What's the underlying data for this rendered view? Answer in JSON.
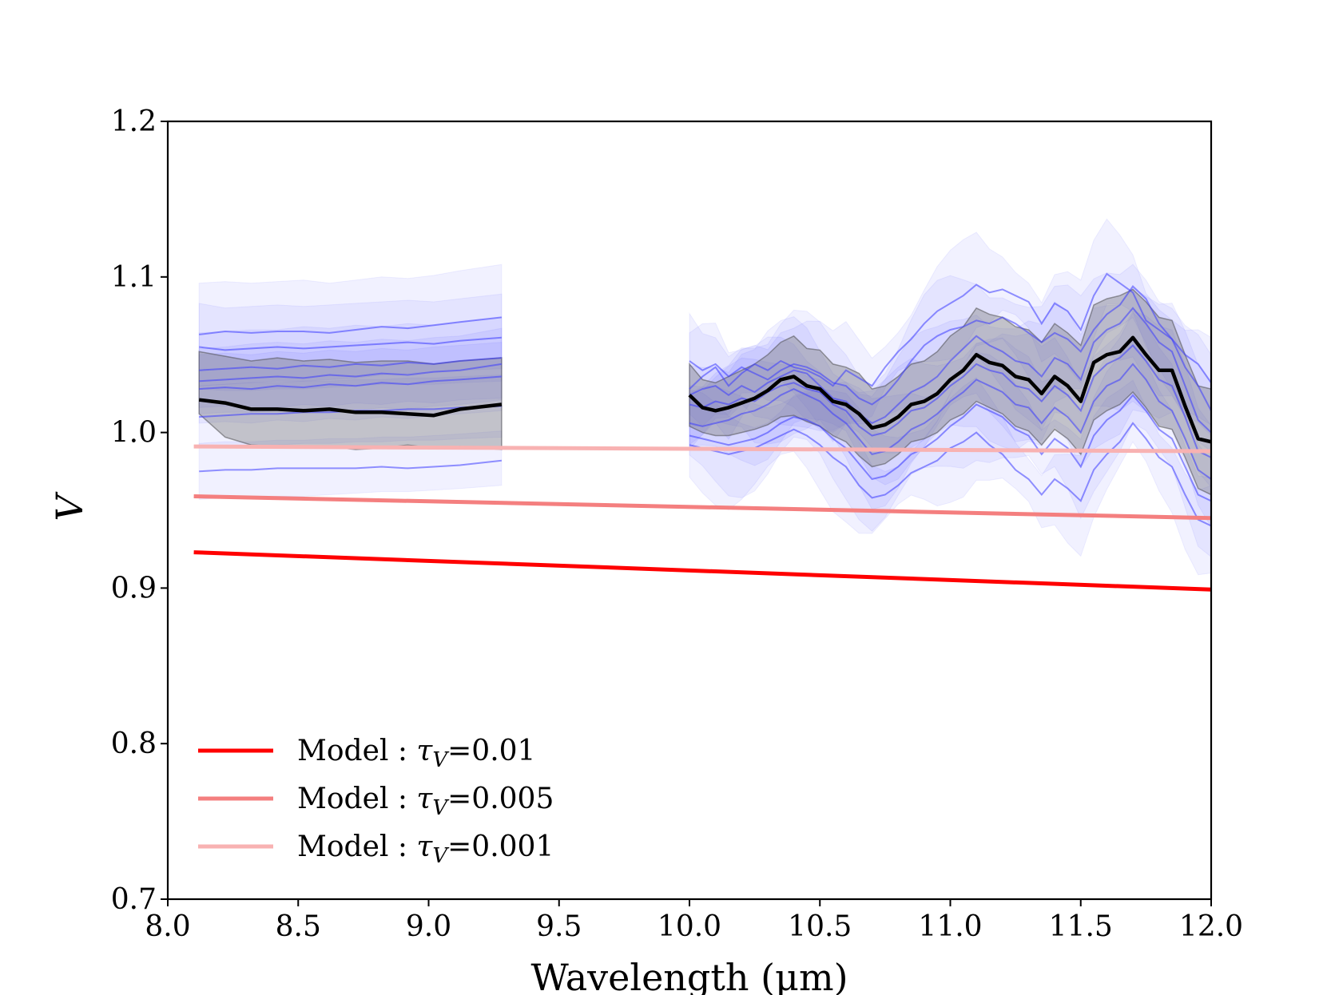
{
  "chart_data": {
    "type": "line",
    "xlabel": "Wavelength (μm)",
    "ylabel": "V",
    "xlim": [
      8.0,
      12.0
    ],
    "ylim": [
      0.7,
      1.2
    ],
    "xticks": [
      "8.0",
      "8.5",
      "9.0",
      "9.5",
      "10.0",
      "10.5",
      "11.0",
      "11.5",
      "12.0"
    ],
    "yticks": [
      "0.7",
      "0.8",
      "0.9",
      "1.0",
      "1.1",
      "1.2"
    ],
    "grid": false,
    "legend_position": "lower-left",
    "colors": {
      "mean": "#000000",
      "mean_band": "#808080",
      "obs": "#3b3bff",
      "model_0_01": "#ff0000",
      "model_0_005": "#f47f7f",
      "model_0_001": "#f8b2b2"
    },
    "models": [
      {
        "name": "Model : τV=0.01",
        "prefix": "Model : ",
        "tau": "τ",
        "sub": "V",
        "value": "=0.01",
        "x": [
          8.1,
          12.0
        ],
        "y": [
          0.923,
          0.899
        ],
        "color": "#ff0000",
        "width": 5
      },
      {
        "name": "Model : τV=0.005",
        "prefix": "Model : ",
        "tau": "τ",
        "sub": "V",
        "value": "=0.005",
        "x": [
          8.1,
          12.0
        ],
        "y": [
          0.959,
          0.945
        ],
        "color": "#f47f7f",
        "width": 5
      },
      {
        "name": "Model : τV=0.001",
        "prefix": "Model : ",
        "tau": "τ",
        "sub": "V",
        "value": "=0.001",
        "x": [
          8.1,
          12.0
        ],
        "y": [
          0.991,
          0.988
        ],
        "color": "#f8b2b2",
        "width": 5
      }
    ],
    "segments": [
      {
        "x": [
          8.12,
          8.22,
          8.32,
          8.42,
          8.52,
          8.62,
          8.72,
          8.82,
          8.92,
          9.02,
          9.12,
          9.28
        ],
        "mean": [
          1.021,
          1.019,
          1.015,
          1.015,
          1.014,
          1.015,
          1.013,
          1.013,
          1.012,
          1.011,
          1.015,
          1.018
        ],
        "mean_band": {
          "low": [
            1.012,
            0.997,
            0.992,
            0.991,
            0.99,
            0.991,
            0.989,
            0.99,
            0.992,
            0.99,
            0.991,
            0.989
          ],
          "high": [
            1.052,
            1.049,
            1.046,
            1.048,
            1.046,
            1.047,
            1.045,
            1.046,
            1.046,
            1.044,
            1.046,
            1.048
          ]
        },
        "obs": [
          {
            "y": [
              1.063,
              1.065,
              1.064,
              1.065,
              1.065,
              1.064,
              1.066,
              1.068,
              1.067,
              1.069,
              1.071,
              1.074
            ],
            "low": [
              1.03,
              1.031,
              1.032,
              1.033,
              1.033,
              1.034,
              1.035,
              1.037,
              1.038,
              1.039,
              1.04,
              1.041
            ],
            "high": [
              1.096,
              1.097,
              1.096,
              1.097,
              1.098,
              1.096,
              1.098,
              1.1,
              1.099,
              1.101,
              1.104,
              1.108
            ]
          },
          {
            "y": [
              1.055,
              1.053,
              1.054,
              1.055,
              1.054,
              1.055,
              1.056,
              1.057,
              1.058,
              1.057,
              1.059,
              1.061
            ],
            "low": [
              1.028,
              1.027,
              1.027,
              1.028,
              1.028,
              1.029,
              1.03,
              1.031,
              1.031,
              1.031,
              1.032,
              1.033
            ],
            "high": [
              1.083,
              1.08,
              1.081,
              1.082,
              1.081,
              1.082,
              1.083,
              1.084,
              1.085,
              1.084,
              1.086,
              1.089
            ]
          },
          {
            "y": [
              1.04,
              1.041,
              1.042,
              1.041,
              1.043,
              1.042,
              1.044,
              1.043,
              1.045,
              1.044,
              1.046,
              1.048
            ],
            "low": [
              1.016,
              1.017,
              1.017,
              1.016,
              1.018,
              1.017,
              1.019,
              1.018,
              1.02,
              1.019,
              1.021,
              1.022
            ],
            "high": [
              1.064,
              1.065,
              1.066,
              1.066,
              1.068,
              1.067,
              1.069,
              1.068,
              1.07,
              1.069,
              1.071,
              1.074
            ]
          },
          {
            "y": [
              1.033,
              1.034,
              1.035,
              1.036,
              1.035,
              1.037,
              1.036,
              1.038,
              1.037,
              1.039,
              1.04,
              1.044
            ],
            "low": [
              1.012,
              1.013,
              1.013,
              1.014,
              1.013,
              1.015,
              1.014,
              1.016,
              1.015,
              1.017,
              1.018,
              1.021
            ],
            "high": [
              1.054,
              1.055,
              1.057,
              1.058,
              1.057,
              1.059,
              1.058,
              1.06,
              1.059,
              1.061,
              1.062,
              1.067
            ]
          },
          {
            "y": [
              1.028,
              1.029,
              1.028,
              1.03,
              1.029,
              1.031,
              1.03,
              1.032,
              1.031,
              1.033,
              1.034,
              1.036
            ],
            "low": [
              1.006,
              1.007,
              1.006,
              1.008,
              1.007,
              1.009,
              1.008,
              1.01,
              1.009,
              1.011,
              1.012,
              1.014
            ],
            "high": [
              1.05,
              1.051,
              1.05,
              1.052,
              1.051,
              1.053,
              1.052,
              1.054,
              1.053,
              1.055,
              1.056,
              1.058
            ]
          },
          {
            "y": [
              1.01,
              1.011,
              1.012,
              1.012,
              1.013,
              1.013,
              1.014,
              1.014,
              1.015,
              1.015,
              1.016,
              1.017
            ],
            "low": [
              0.99,
              0.991,
              0.992,
              0.992,
              0.993,
              0.993,
              0.994,
              0.994,
              0.995,
              0.995,
              0.996,
              0.997
            ],
            "high": [
              1.03,
              1.031,
              1.032,
              1.032,
              1.033,
              1.033,
              1.034,
              1.034,
              1.035,
              1.035,
              1.036,
              1.037
            ]
          },
          {
            "y": [
              0.975,
              0.976,
              0.976,
              0.977,
              0.977,
              0.977,
              0.977,
              0.978,
              0.977,
              0.978,
              0.979,
              0.982
            ],
            "low": [
              0.957,
              0.958,
              0.958,
              0.959,
              0.959,
              0.96,
              0.961,
              0.962,
              0.962,
              0.963,
              0.964,
              0.966
            ],
            "high": [
              0.993,
              0.994,
              0.994,
              0.995,
              0.995,
              0.996,
              0.996,
              0.997,
              0.997,
              0.998,
              0.999,
              1.001
            ]
          }
        ]
      },
      {
        "x": [
          10.0,
          10.05,
          10.1,
          10.15,
          10.2,
          10.25,
          10.3,
          10.35,
          10.4,
          10.45,
          10.5,
          10.55,
          10.6,
          10.65,
          10.7,
          10.75,
          10.8,
          10.85,
          10.9,
          10.95,
          11.0,
          11.05,
          11.1,
          11.15,
          11.2,
          11.25,
          11.3,
          11.35,
          11.4,
          11.45,
          11.5,
          11.55,
          11.6,
          11.65,
          11.7,
          11.75,
          11.8,
          11.85,
          11.9,
          11.95,
          12.0
        ],
        "mean": [
          1.024,
          1.016,
          1.014,
          1.016,
          1.019,
          1.022,
          1.027,
          1.034,
          1.036,
          1.03,
          1.028,
          1.02,
          1.018,
          1.012,
          1.003,
          1.005,
          1.01,
          1.018,
          1.02,
          1.025,
          1.034,
          1.04,
          1.05,
          1.045,
          1.043,
          1.036,
          1.034,
          1.025,
          1.036,
          1.03,
          1.02,
          1.045,
          1.05,
          1.052,
          1.061,
          1.05,
          1.04,
          1.04,
          1.017,
          0.996,
          0.994
        ],
        "mean_band": {
          "low": [
            1.004,
            1.0,
            0.998,
            0.998,
            1.0,
            1.002,
            1.005,
            1.01,
            1.011,
            1.007,
            1.004,
            0.998,
            0.994,
            0.985,
            0.978,
            0.98,
            0.986,
            0.994,
            0.996,
            1.0,
            1.008,
            1.012,
            1.02,
            1.016,
            1.012,
            1.004,
            1.001,
            0.992,
            1.002,
            0.996,
            0.986,
            1.008,
            1.014,
            1.018,
            1.026,
            1.016,
            1.004,
            1.002,
            0.984,
            0.964,
            0.96
          ],
          "high": [
            1.044,
            1.034,
            1.032,
            1.036,
            1.04,
            1.044,
            1.05,
            1.058,
            1.062,
            1.054,
            1.053,
            1.044,
            1.042,
            1.038,
            1.028,
            1.03,
            1.036,
            1.044,
            1.046,
            1.052,
            1.062,
            1.068,
            1.08,
            1.076,
            1.074,
            1.068,
            1.066,
            1.058,
            1.07,
            1.064,
            1.056,
            1.082,
            1.086,
            1.088,
            1.092,
            1.084,
            1.074,
            1.072,
            1.05,
            1.03,
            1.028
          ]
        },
        "obs": [
          {
            "y": [
              1.028,
              1.036,
              1.042,
              1.03,
              1.038,
              1.044,
              1.04,
              1.046,
              1.042,
              1.04,
              1.036,
              1.03,
              1.04,
              1.035,
              1.03,
              1.042,
              1.052,
              1.06,
              1.07,
              1.078,
              1.083,
              1.088,
              1.095,
              1.09,
              1.092,
              1.088,
              1.084,
              1.07,
              1.083,
              1.078,
              1.066,
              1.088,
              1.102,
              1.096,
              1.09,
              1.072,
              1.066,
              1.06,
              1.05,
              1.044,
              1.032
            ]
          },
          {
            "y": [
              1.046,
              1.04,
              1.044,
              1.036,
              1.042,
              1.038,
              1.034,
              1.04,
              1.044,
              1.042,
              1.038,
              1.032,
              1.03,
              1.022,
              1.018,
              1.024,
              1.034,
              1.046,
              1.056,
              1.062,
              1.066,
              1.068,
              1.072,
              1.07,
              1.074,
              1.07,
              1.064,
              1.058,
              1.064,
              1.06,
              1.052,
              1.066,
              1.076,
              1.082,
              1.094,
              1.086,
              1.07,
              1.06,
              1.042,
              1.03,
              1.014
            ]
          },
          {
            "y": [
              1.024,
              1.028,
              1.03,
              1.024,
              1.03,
              1.026,
              1.032,
              1.036,
              1.04,
              1.038,
              1.03,
              1.022,
              1.02,
              1.012,
              1.006,
              1.01,
              1.018,
              1.026,
              1.03,
              1.036,
              1.046,
              1.054,
              1.062,
              1.056,
              1.052,
              1.046,
              1.044,
              1.036,
              1.048,
              1.044,
              1.034,
              1.058,
              1.066,
              1.07,
              1.08,
              1.07,
              1.058,
              1.052,
              1.03,
              1.008,
              1.0
            ]
          },
          {
            "y": [
              1.018,
              1.016,
              1.02,
              1.018,
              1.022,
              1.02,
              1.026,
              1.03,
              1.032,
              1.028,
              1.026,
              1.018,
              1.014,
              1.004,
              0.998,
              1.0,
              1.006,
              1.014,
              1.016,
              1.022,
              1.03,
              1.036,
              1.044,
              1.04,
              1.038,
              1.03,
              1.028,
              1.02,
              1.03,
              1.024,
              1.014,
              1.036,
              1.044,
              1.048,
              1.056,
              1.046,
              1.034,
              1.03,
              1.01,
              0.988,
              0.984
            ]
          },
          {
            "y": [
              1.006,
              1.004,
              1.006,
              1.008,
              1.012,
              1.014,
              1.018,
              1.024,
              1.028,
              1.024,
              1.02,
              1.012,
              1.006,
              0.996,
              0.986,
              0.988,
              0.994,
              1.002,
              1.006,
              1.012,
              1.02,
              1.026,
              1.034,
              1.03,
              1.026,
              1.018,
              1.016,
              1.006,
              1.016,
              1.01,
              1.0,
              1.02,
              1.03,
              1.034,
              1.044,
              1.034,
              1.02,
              1.014,
              0.996,
              0.976,
              0.97
            ]
          },
          {
            "y": [
              0.998,
              0.996,
              0.994,
              0.992,
              0.994,
              0.996,
              1.0,
              1.006,
              1.01,
              1.008,
              1.004,
              0.996,
              0.99,
              0.98,
              0.97,
              0.972,
              0.978,
              0.986,
              0.99,
              0.996,
              1.004,
              1.01,
              1.018,
              1.014,
              1.01,
              1.002,
              0.998,
              0.986,
              0.996,
              0.99,
              0.978,
              0.998,
              1.008,
              1.014,
              1.024,
              1.014,
              1.002,
              0.996,
              0.978,
              0.96,
              0.956
            ]
          },
          {
            "y": [
              0.992,
              0.99,
              0.988,
              0.986,
              0.988,
              0.99,
              0.994,
              0.998,
              1.002,
              0.998,
              0.992,
              0.984,
              0.978,
              0.966,
              0.958,
              0.96,
              0.966,
              0.974,
              0.978,
              0.982,
              0.99,
              0.994,
              1.0,
              0.992,
              0.986,
              0.976,
              0.97,
              0.96,
              0.97,
              0.964,
              0.956,
              0.976,
              0.986,
              0.994,
              1.006,
              0.996,
              0.984,
              0.978,
              0.96,
              0.944,
              0.94
            ]
          }
        ]
      }
    ]
  }
}
